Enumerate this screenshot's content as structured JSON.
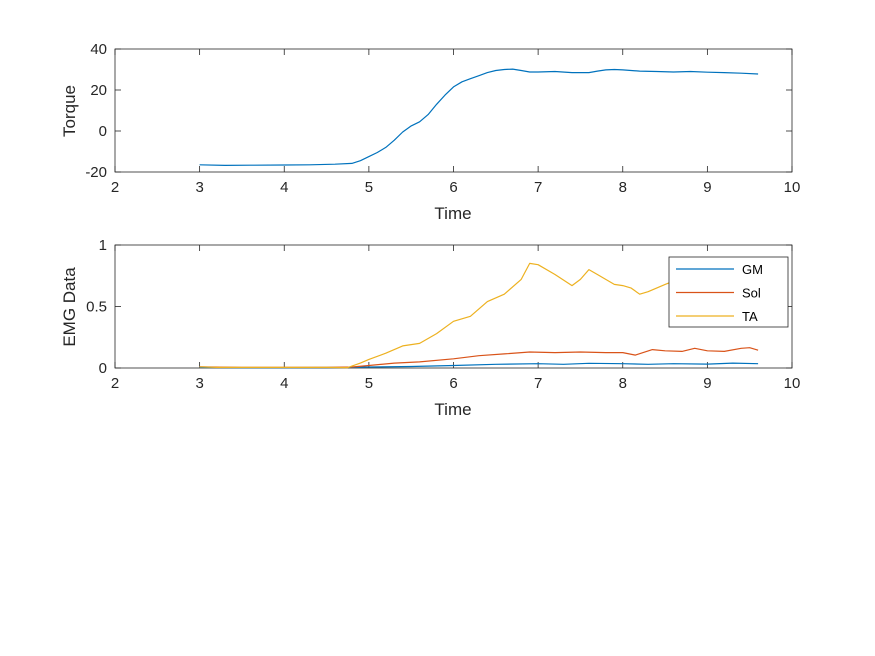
{
  "chart_data": [
    {
      "type": "line",
      "xlabel": "Time",
      "ylabel": "Torque",
      "xlim": [
        2,
        10
      ],
      "ylim": [
        -20,
        40
      ],
      "xticks": [
        "2",
        "3",
        "4",
        "5",
        "6",
        "7",
        "8",
        "9",
        "10"
      ],
      "yticks": [
        "-20",
        "0",
        "20",
        "40"
      ],
      "grid": false,
      "series": [
        {
          "color": "#0072BD",
          "x": [
            3.0,
            3.3,
            3.6,
            4.0,
            4.3,
            4.6,
            4.8,
            4.9,
            5.0,
            5.1,
            5.2,
            5.3,
            5.4,
            5.5,
            5.6,
            5.7,
            5.8,
            5.9,
            6.0,
            6.1,
            6.2,
            6.3,
            6.4,
            6.5,
            6.6,
            6.7,
            6.8,
            6.9,
            7.0,
            7.2,
            7.4,
            7.6,
            7.7,
            7.8,
            7.9,
            8.0,
            8.2,
            8.4,
            8.6,
            8.8,
            9.0,
            9.2,
            9.4,
            9.6
          ],
          "y": [
            -16.5,
            -16.8,
            -16.7,
            -16.6,
            -16.5,
            -16.2,
            -15.8,
            -14.5,
            -12.5,
            -10.5,
            -8.0,
            -4.5,
            -0.5,
            2.5,
            4.5,
            8.0,
            13.0,
            17.5,
            21.5,
            24.0,
            25.5,
            27.0,
            28.5,
            29.5,
            30.0,
            30.2,
            29.5,
            28.8,
            28.8,
            29.0,
            28.5,
            28.5,
            29.2,
            29.8,
            30.0,
            29.8,
            29.2,
            29.0,
            28.8,
            29.0,
            28.7,
            28.5,
            28.2,
            27.8
          ]
        }
      ]
    },
    {
      "type": "line",
      "xlabel": "Time",
      "ylabel": "EMG Data",
      "xlim": [
        2,
        10
      ],
      "ylim": [
        0,
        1
      ],
      "xticks": [
        "2",
        "3",
        "4",
        "5",
        "6",
        "7",
        "8",
        "9",
        "10"
      ],
      "yticks": [
        "0",
        "0.5",
        "1"
      ],
      "grid": false,
      "legend": "top-right",
      "series": [
        {
          "name": "GM",
          "color": "#0072BD",
          "x": [
            3.0,
            3.5,
            4.0,
            4.5,
            4.8,
            5.0,
            5.5,
            6.0,
            6.5,
            7.0,
            7.3,
            7.6,
            8.0,
            8.3,
            8.6,
            9.0,
            9.3,
            9.6
          ],
          "y": [
            0.005,
            0.003,
            0.003,
            0.004,
            0.005,
            0.008,
            0.012,
            0.02,
            0.03,
            0.035,
            0.03,
            0.038,
            0.035,
            0.03,
            0.035,
            0.032,
            0.04,
            0.035
          ]
        },
        {
          "name": "Sol",
          "color": "#D95319",
          "x": [
            3.0,
            3.5,
            4.0,
            4.5,
            4.8,
            5.0,
            5.3,
            5.6,
            6.0,
            6.3,
            6.6,
            6.9,
            7.2,
            7.5,
            7.8,
            8.0,
            8.15,
            8.35,
            8.5,
            8.7,
            8.85,
            9.0,
            9.2,
            9.4,
            9.5,
            9.6
          ],
          "y": [
            0.01,
            0.005,
            0.005,
            0.005,
            0.008,
            0.02,
            0.04,
            0.05,
            0.075,
            0.1,
            0.115,
            0.13,
            0.125,
            0.13,
            0.125,
            0.125,
            0.105,
            0.15,
            0.14,
            0.135,
            0.16,
            0.14,
            0.135,
            0.16,
            0.165,
            0.145
          ]
        },
        {
          "name": "TA",
          "color": "#EDB120",
          "x": [
            3.0,
            3.2,
            3.5,
            4.0,
            4.5,
            4.75,
            4.9,
            5.0,
            5.2,
            5.4,
            5.6,
            5.8,
            6.0,
            6.2,
            6.4,
            6.6,
            6.8,
            6.9,
            7.0,
            7.2,
            7.4,
            7.5,
            7.6,
            7.7,
            7.9,
            8.0,
            8.1,
            8.2,
            8.3,
            8.5,
            8.65
          ],
          "y": [
            0.01,
            0.005,
            0.005,
            0.005,
            0.005,
            0.003,
            0.04,
            0.07,
            0.12,
            0.18,
            0.2,
            0.28,
            0.38,
            0.42,
            0.54,
            0.6,
            0.72,
            0.85,
            0.84,
            0.76,
            0.67,
            0.72,
            0.8,
            0.76,
            0.68,
            0.67,
            0.65,
            0.6,
            0.62,
            0.68,
            0.72
          ]
        }
      ]
    }
  ]
}
